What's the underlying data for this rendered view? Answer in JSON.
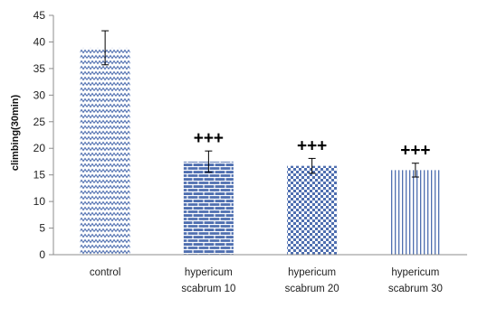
{
  "chart_data": {
    "type": "bar",
    "title": "",
    "xlabel": "",
    "ylabel": "climbing(30min)",
    "ylim": [
      0,
      45
    ],
    "y_ticks": [
      0,
      5,
      10,
      15,
      20,
      25,
      30,
      35,
      40,
      45
    ],
    "grid": false,
    "categories": [
      [
        "control"
      ],
      [
        "hypericum",
        "scabrum 10"
      ],
      [
        "hypericum",
        "scabrum 20"
      ],
      [
        "hypericum",
        "scabrum 30"
      ]
    ],
    "values": [
      38.9,
      17.5,
      16.7,
      15.9
    ],
    "errors": [
      3.2,
      2.0,
      1.4,
      1.3
    ],
    "significance": [
      "",
      "+++",
      "+++",
      "+++"
    ],
    "patterns": [
      "zigzag",
      "brick",
      "checker",
      "vertical-lines"
    ],
    "colors": {
      "bar": "#4f6fb0",
      "axis": "#8c8c8c",
      "error_bar": "#000000"
    }
  }
}
